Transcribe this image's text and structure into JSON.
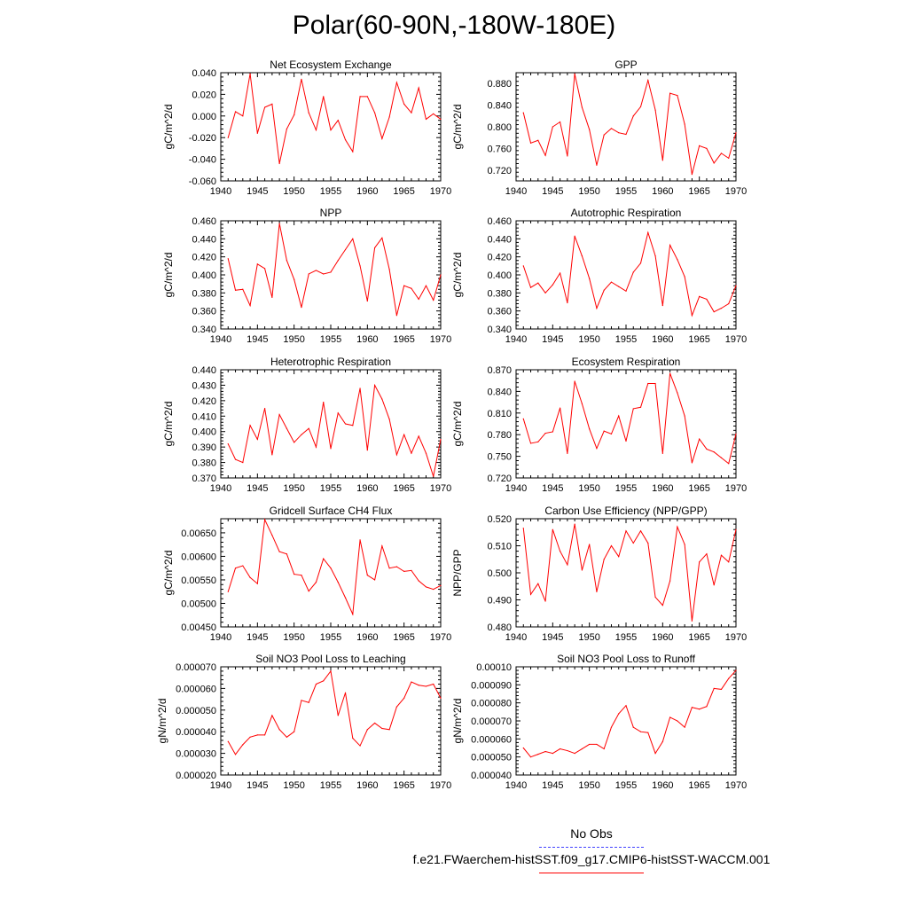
{
  "title": "Polar(60-90N,-180W-180E)",
  "legend": {
    "obs_label": "No Obs",
    "model_label": "f.e21.FWaerchem-histSST.f09_g17.CMIP6-histSST-WACCM.001",
    "obs_color": "#4040ff",
    "model_color": "#ff0000"
  },
  "chart_data": [
    {
      "type": "line",
      "title": "Net Ecosystem Exchange",
      "ylabel": "gC/m^2/d",
      "xlabel": "",
      "xlim": [
        1940,
        1970
      ],
      "ylim": [
        -0.06,
        0.04
      ],
      "xticks": [
        1940,
        1945,
        1950,
        1955,
        1960,
        1965,
        1970
      ],
      "yticks": [
        -0.06,
        -0.04,
        -0.02,
        0.0,
        0.02,
        0.04
      ],
      "ytick_labels": [
        "-0.060",
        "-0.040",
        "-0.020",
        "0.000",
        "0.020",
        "0.040"
      ],
      "x": [
        1941,
        1942,
        1943,
        1944,
        1945,
        1946,
        1947,
        1948,
        1949,
        1950,
        1951,
        1952,
        1953,
        1954,
        1955,
        1956,
        1957,
        1958,
        1959,
        1960,
        1961,
        1962,
        1963,
        1964,
        1965,
        1966,
        1967,
        1968,
        1969,
        1970
      ],
      "values": [
        -0.02,
        0.004,
        0.0,
        0.039,
        -0.016,
        0.008,
        0.011,
        -0.044,
        -0.012,
        0.001,
        0.034,
        0.003,
        -0.013,
        0.018,
        -0.013,
        -0.004,
        -0.022,
        -0.033,
        0.018,
        0.018,
        0.003,
        -0.021,
        -0.001,
        0.031,
        0.011,
        0.003,
        0.026,
        -0.003,
        0.002,
        -0.003
      ]
    },
    {
      "type": "line",
      "title": "GPP",
      "ylabel": "gC/m^2/d",
      "xlabel": "",
      "xlim": [
        1940,
        1970
      ],
      "ylim": [
        0.7,
        0.9
      ],
      "xticks": [
        1940,
        1945,
        1950,
        1955,
        1960,
        1965,
        1970
      ],
      "yticks": [
        0.72,
        0.76,
        0.8,
        0.84,
        0.88
      ],
      "ytick_labels": [
        "0.720",
        "0.760",
        "0.800",
        "0.840",
        "0.880"
      ],
      "x": [
        1941,
        1942,
        1943,
        1944,
        1945,
        1946,
        1947,
        1948,
        1949,
        1950,
        1951,
        1952,
        1953,
        1954,
        1955,
        1956,
        1957,
        1958,
        1959,
        1960,
        1961,
        1962,
        1963,
        1964,
        1965,
        1966,
        1967,
        1968,
        1969,
        1970
      ],
      "values": [
        0.826,
        0.77,
        0.775,
        0.747,
        0.8,
        0.809,
        0.746,
        0.898,
        0.836,
        0.795,
        0.729,
        0.785,
        0.797,
        0.789,
        0.786,
        0.82,
        0.837,
        0.886,
        0.831,
        0.738,
        0.862,
        0.858,
        0.805,
        0.712,
        0.765,
        0.76,
        0.733,
        0.751,
        0.742,
        0.789
      ]
    },
    {
      "type": "line",
      "title": "NPP",
      "ylabel": "gC/m^2/d",
      "xlabel": "",
      "xlim": [
        1940,
        1970
      ],
      "ylim": [
        0.34,
        0.46
      ],
      "xticks": [
        1940,
        1945,
        1950,
        1955,
        1960,
        1965,
        1970
      ],
      "yticks": [
        0.34,
        0.36,
        0.38,
        0.4,
        0.42,
        0.44,
        0.46
      ],
      "ytick_labels": [
        "0.340",
        "0.360",
        "0.380",
        "0.400",
        "0.420",
        "0.440",
        "0.460"
      ],
      "x": [
        1941,
        1942,
        1943,
        1944,
        1945,
        1946,
        1947,
        1948,
        1949,
        1950,
        1951,
        1952,
        1953,
        1954,
        1955,
        1956,
        1957,
        1958,
        1959,
        1960,
        1961,
        1962,
        1963,
        1964,
        1965,
        1966,
        1967,
        1968,
        1969,
        1970
      ],
      "values": [
        0.418,
        0.383,
        0.384,
        0.366,
        0.412,
        0.407,
        0.375,
        0.457,
        0.416,
        0.395,
        0.364,
        0.401,
        0.405,
        0.401,
        0.403,
        0.416,
        0.428,
        0.44,
        0.41,
        0.371,
        0.43,
        0.441,
        0.406,
        0.355,
        0.388,
        0.385,
        0.373,
        0.388,
        0.372,
        0.4
      ]
    },
    {
      "type": "line",
      "title": "Autotrophic Respiration",
      "ylabel": "gC/m^2/d",
      "xlabel": "",
      "xlim": [
        1940,
        1970
      ],
      "ylim": [
        0.34,
        0.46
      ],
      "xticks": [
        1940,
        1945,
        1950,
        1955,
        1960,
        1965,
        1970
      ],
      "yticks": [
        0.34,
        0.36,
        0.38,
        0.4,
        0.42,
        0.44,
        0.46
      ],
      "ytick_labels": [
        "0.340",
        "0.360",
        "0.380",
        "0.400",
        "0.420",
        "0.440",
        "0.460"
      ],
      "x": [
        1941,
        1942,
        1943,
        1944,
        1945,
        1946,
        1947,
        1948,
        1949,
        1950,
        1951,
        1952,
        1953,
        1954,
        1955,
        1956,
        1957,
        1958,
        1959,
        1960,
        1961,
        1962,
        1963,
        1964,
        1965,
        1966,
        1967,
        1968,
        1969,
        1970
      ],
      "values": [
        0.41,
        0.386,
        0.391,
        0.38,
        0.389,
        0.402,
        0.369,
        0.443,
        0.421,
        0.396,
        0.363,
        0.383,
        0.392,
        0.387,
        0.382,
        0.403,
        0.413,
        0.447,
        0.421,
        0.366,
        0.433,
        0.417,
        0.398,
        0.355,
        0.376,
        0.373,
        0.359,
        0.363,
        0.368,
        0.388
      ]
    },
    {
      "type": "line",
      "title": "Heterotrophic Respiration",
      "ylabel": "gC/m^2/d",
      "xlabel": "",
      "xlim": [
        1940,
        1970
      ],
      "ylim": [
        0.37,
        0.44
      ],
      "xticks": [
        1940,
        1945,
        1950,
        1955,
        1960,
        1965,
        1970
      ],
      "yticks": [
        0.37,
        0.38,
        0.39,
        0.4,
        0.41,
        0.42,
        0.43,
        0.44
      ],
      "ytick_labels": [
        "0.370",
        "0.380",
        "0.390",
        "0.400",
        "0.410",
        "0.420",
        "0.430",
        "0.440"
      ],
      "x": [
        1941,
        1942,
        1943,
        1944,
        1945,
        1946,
        1947,
        1948,
        1949,
        1950,
        1951,
        1952,
        1953,
        1954,
        1955,
        1956,
        1957,
        1958,
        1959,
        1960,
        1961,
        1962,
        1963,
        1964,
        1965,
        1966,
        1967,
        1968,
        1969,
        1970
      ],
      "values": [
        0.392,
        0.382,
        0.38,
        0.404,
        0.395,
        0.415,
        0.385,
        0.411,
        0.402,
        0.393,
        0.398,
        0.402,
        0.39,
        0.419,
        0.389,
        0.412,
        0.405,
        0.404,
        0.428,
        0.388,
        0.43,
        0.421,
        0.408,
        0.385,
        0.398,
        0.386,
        0.397,
        0.386,
        0.371,
        0.395
      ]
    },
    {
      "type": "line",
      "title": "Ecosystem Respiration",
      "ylabel": "gC/m^2/d",
      "xlabel": "",
      "xlim": [
        1940,
        1970
      ],
      "ylim": [
        0.72,
        0.87
      ],
      "xticks": [
        1940,
        1945,
        1950,
        1955,
        1960,
        1965,
        1970
      ],
      "yticks": [
        0.72,
        0.75,
        0.78,
        0.81,
        0.84,
        0.87
      ],
      "ytick_labels": [
        "0.720",
        "0.750",
        "0.780",
        "0.810",
        "0.840",
        "0.870"
      ],
      "x": [
        1941,
        1942,
        1943,
        1944,
        1945,
        1946,
        1947,
        1948,
        1949,
        1950,
        1951,
        1952,
        1953,
        1954,
        1955,
        1956,
        1957,
        1958,
        1959,
        1960,
        1961,
        1962,
        1963,
        1964,
        1965,
        1966,
        1967,
        1968,
        1969,
        1970
      ],
      "values": [
        0.802,
        0.768,
        0.77,
        0.782,
        0.784,
        0.817,
        0.754,
        0.854,
        0.823,
        0.788,
        0.761,
        0.785,
        0.781,
        0.806,
        0.771,
        0.816,
        0.818,
        0.851,
        0.851,
        0.754,
        0.865,
        0.838,
        0.806,
        0.741,
        0.774,
        0.76,
        0.756,
        0.748,
        0.74,
        0.781
      ]
    },
    {
      "type": "line",
      "title": "Gridcell Surface CH4 Flux",
      "ylabel": "gC/m^2/d",
      "xlabel": "",
      "xlim": [
        1940,
        1970
      ],
      "ylim": [
        0.0045,
        0.0068
      ],
      "xticks": [
        1940,
        1945,
        1950,
        1955,
        1960,
        1965,
        1970
      ],
      "yticks": [
        0.0045,
        0.005,
        0.0055,
        0.006,
        0.0065
      ],
      "ytick_labels": [
        "0.00450",
        "0.00500",
        "0.00550",
        "0.00600",
        "0.00650"
      ],
      "x": [
        1941,
        1942,
        1943,
        1944,
        1945,
        1946,
        1947,
        1948,
        1949,
        1950,
        1951,
        1952,
        1953,
        1954,
        1955,
        1956,
        1957,
        1958,
        1959,
        1960,
        1961,
        1962,
        1963,
        1964,
        1965,
        1966,
        1967,
        1968,
        1969,
        1970
      ],
      "values": [
        0.00525,
        0.00575,
        0.0058,
        0.00555,
        0.00542,
        0.00678,
        0.00645,
        0.0061,
        0.00605,
        0.00562,
        0.0056,
        0.00526,
        0.00545,
        0.00595,
        0.00575,
        0.00545,
        0.00512,
        0.00477,
        0.00635,
        0.0056,
        0.0055,
        0.00622,
        0.00575,
        0.00578,
        0.00568,
        0.0057,
        0.00548,
        0.00535,
        0.0053,
        0.00538
      ]
    },
    {
      "type": "line",
      "title": "Carbon Use Efficiency (NPP/GPP)",
      "ylabel": "NPP/GPP",
      "xlabel": "",
      "xlim": [
        1940,
        1970
      ],
      "ylim": [
        0.48,
        0.52
      ],
      "xticks": [
        1940,
        1945,
        1950,
        1955,
        1960,
        1965,
        1970
      ],
      "yticks": [
        0.48,
        0.49,
        0.5,
        0.51,
        0.52
      ],
      "ytick_labels": [
        "0.480",
        "0.490",
        "0.500",
        "0.510",
        "0.520"
      ],
      "x": [
        1941,
        1942,
        1943,
        1944,
        1945,
        1946,
        1947,
        1948,
        1949,
        1950,
        1951,
        1952,
        1953,
        1954,
        1955,
        1956,
        1957,
        1958,
        1959,
        1960,
        1961,
        1962,
        1963,
        1964,
        1965,
        1966,
        1967,
        1968,
        1969,
        1970
      ],
      "values": [
        0.5165,
        0.492,
        0.496,
        0.4895,
        0.516,
        0.508,
        0.503,
        0.518,
        0.501,
        0.5105,
        0.493,
        0.505,
        0.51,
        0.506,
        0.5155,
        0.511,
        0.5155,
        0.511,
        0.491,
        0.488,
        0.497,
        0.517,
        0.5105,
        0.4822,
        0.504,
        0.507,
        0.4955,
        0.5065,
        0.504,
        0.516
      ]
    },
    {
      "type": "line",
      "title": "Soil NO3 Pool Loss to Leaching",
      "ylabel": "gN/m^2/d",
      "xlabel": "",
      "xlim": [
        1940,
        1970
      ],
      "ylim": [
        2e-05,
        7e-05
      ],
      "xticks": [
        1940,
        1945,
        1950,
        1955,
        1960,
        1965,
        1970
      ],
      "yticks": [
        2e-05,
        3e-05,
        4e-05,
        5e-05,
        6e-05,
        7e-05
      ],
      "ytick_labels": [
        "0.000020",
        "0.000030",
        "0.000040",
        "0.000050",
        "0.000060",
        "0.000070"
      ],
      "x": [
        1941,
        1942,
        1943,
        1944,
        1945,
        1946,
        1947,
        1948,
        1949,
        1950,
        1951,
        1952,
        1953,
        1954,
        1955,
        1956,
        1957,
        1958,
        1959,
        1960,
        1961,
        1962,
        1963,
        1964,
        1965,
        1966,
        1967,
        1968,
        1969,
        1970
      ],
      "values": [
        3.55e-05,
        2.95e-05,
        3.4e-05,
        3.75e-05,
        3.85e-05,
        3.85e-05,
        4.75e-05,
        4.1e-05,
        3.75e-05,
        4e-05,
        5.45e-05,
        5.35e-05,
        6.2e-05,
        6.35e-05,
        6.8e-05,
        4.75e-05,
        5.8e-05,
        3.7e-05,
        3.35e-05,
        4.1e-05,
        4.4e-05,
        4.15e-05,
        4.1e-05,
        5.15e-05,
        5.55e-05,
        6.3e-05,
        6.15e-05,
        6.1e-05,
        6.2e-05,
        5.55e-05
      ]
    },
    {
      "type": "line",
      "title": "Soil NO3 Pool Loss to Runoff",
      "ylabel": "gN/m^2/d",
      "xlabel": "",
      "xlim": [
        1940,
        1970
      ],
      "ylim": [
        4e-05,
        0.0001
      ],
      "xticks": [
        1940,
        1945,
        1950,
        1955,
        1960,
        1965,
        1970
      ],
      "yticks": [
        4e-05,
        5e-05,
        6e-05,
        7e-05,
        8e-05,
        9e-05,
        0.0001
      ],
      "ytick_labels": [
        "0.000040",
        "0.000050",
        "0.000060",
        "0.000070",
        "0.000080",
        "0.000090",
        "0.00010"
      ],
      "x": [
        1941,
        1942,
        1943,
        1944,
        1945,
        1946,
        1947,
        1948,
        1949,
        1950,
        1951,
        1952,
        1953,
        1954,
        1955,
        1956,
        1957,
        1958,
        1959,
        1960,
        1961,
        1962,
        1963,
        1964,
        1965,
        1966,
        1967,
        1968,
        1969,
        1970
      ],
      "values": [
        5.5e-05,
        5e-05,
        5.15e-05,
        5.3e-05,
        5.2e-05,
        5.45e-05,
        5.35e-05,
        5.2e-05,
        5.45e-05,
        5.7e-05,
        5.7e-05,
        5.45e-05,
        6.65e-05,
        7.4e-05,
        7.85e-05,
        6.65e-05,
        6.4e-05,
        6.35e-05,
        5.2e-05,
        5.85e-05,
        7.2e-05,
        7e-05,
        6.65e-05,
        7.75e-05,
        7.65e-05,
        7.8e-05,
        8.8e-05,
        8.75e-05,
        9.35e-05,
        9.8e-05
      ]
    }
  ]
}
